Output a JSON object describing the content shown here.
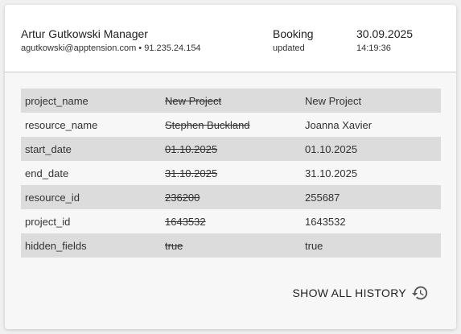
{
  "header": {
    "user_name": "Artur Gutkowski Manager",
    "user_meta": "agutkowski@apptension.com • 91.235.24.154",
    "action_title": "Booking",
    "action_sub": "updated",
    "date": "30.09.2025",
    "time": "14:19:36"
  },
  "changes": [
    {
      "field": "project_name",
      "old": "New Project",
      "new": "New Project"
    },
    {
      "field": "resource_name",
      "old": "Stephen Buckland",
      "new": "Joanna Xavier"
    },
    {
      "field": "start_date",
      "old": "01.10.2025",
      "new": "01.10.2025"
    },
    {
      "field": "end_date",
      "old": "31.10.2025",
      "new": "31.10.2025"
    },
    {
      "field": "resource_id",
      "old": "236200",
      "new": "255687"
    },
    {
      "field": "project_id",
      "old": "1643532",
      "new": "1643532"
    },
    {
      "field": "hidden_fields",
      "old": "true",
      "new": "true"
    }
  ],
  "footer": {
    "show_all_label": "SHOW ALL HISTORY",
    "icon": "history-icon"
  }
}
